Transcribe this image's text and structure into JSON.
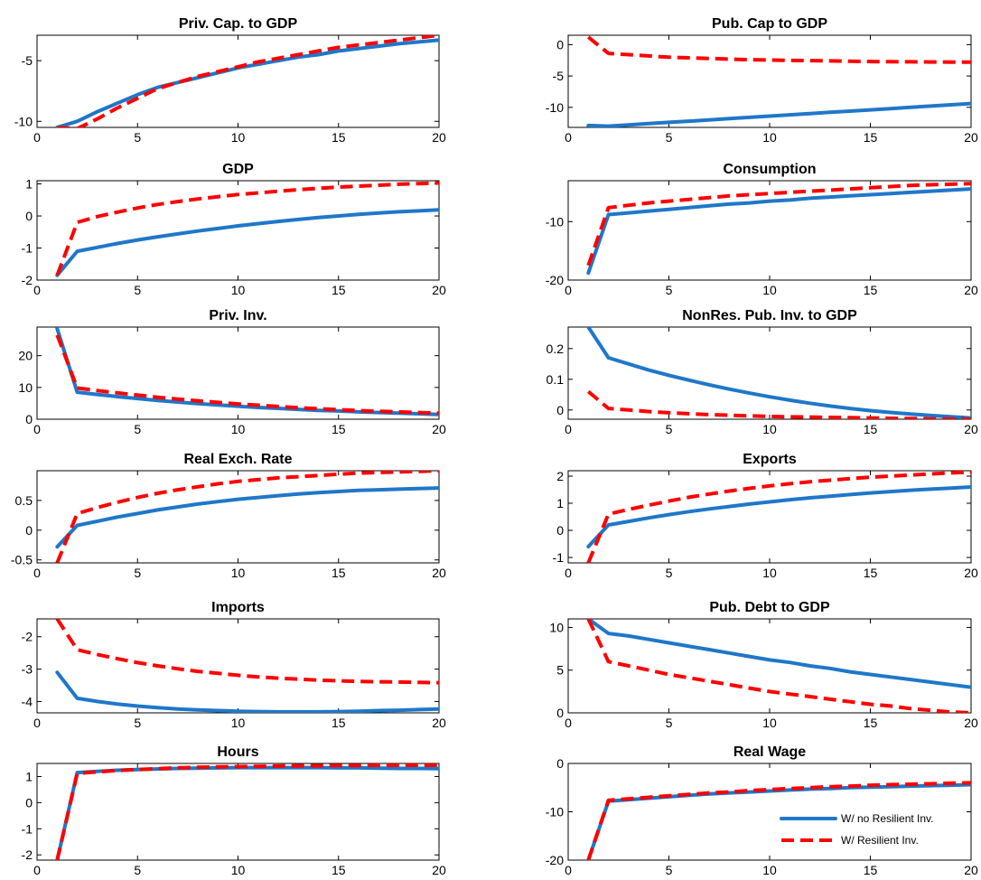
{
  "chart_data": [
    {
      "type": "line",
      "title": "Priv. Cap. to GDP",
      "x": [
        1,
        2,
        3,
        4,
        5,
        6,
        7,
        8,
        9,
        10,
        11,
        12,
        13,
        14,
        15,
        16,
        17,
        18,
        19,
        20
      ],
      "xlim": [
        0,
        20
      ],
      "xticks": [
        0,
        5,
        10,
        15,
        20
      ],
      "ylim": [
        -10.5,
        -2.9
      ],
      "yticks": [
        -10,
        -5
      ],
      "series": [
        {
          "name": "W/ no Resilient Inv.",
          "values": [
            -10.5,
            -10.0,
            -9.2,
            -8.5,
            -7.8,
            -7.2,
            -6.8,
            -6.4,
            -6.0,
            -5.6,
            -5.3,
            -5.0,
            -4.7,
            -4.5,
            -4.2,
            -4.0,
            -3.8,
            -3.6,
            -3.45,
            -3.3
          ]
        },
        {
          "name": "W/ Resilient Inv.",
          "values": [
            -10.5,
            -10.6,
            -9.8,
            -8.9,
            -8.1,
            -7.3,
            -6.8,
            -6.3,
            -5.9,
            -5.5,
            -5.1,
            -4.8,
            -4.5,
            -4.2,
            -3.9,
            -3.7,
            -3.5,
            -3.3,
            -3.1,
            -2.9
          ]
        }
      ]
    },
    {
      "type": "line",
      "title": "Pub. Cap to GDP",
      "x": [
        1,
        2,
        3,
        4,
        5,
        6,
        7,
        8,
        9,
        10,
        11,
        12,
        13,
        14,
        15,
        16,
        17,
        18,
        19,
        20
      ],
      "xlim": [
        0,
        20
      ],
      "xticks": [
        0,
        5,
        10,
        15,
        20
      ],
      "ylim": [
        -13.2,
        1.5
      ],
      "yticks": [
        -10,
        -5,
        0
      ],
      "series": [
        {
          "name": "W/ no Resilient Inv.",
          "values": [
            -12.9,
            -13.0,
            -12.8,
            -12.6,
            -12.4,
            -12.2,
            -12.0,
            -11.8,
            -11.6,
            -11.4,
            -11.2,
            -11.0,
            -10.8,
            -10.6,
            -10.4,
            -10.2,
            -10.0,
            -9.8,
            -9.6,
            -9.4
          ]
        },
        {
          "name": "W/ Resilient Inv.",
          "values": [
            1.2,
            -1.4,
            -1.6,
            -1.8,
            -2.0,
            -2.1,
            -2.2,
            -2.3,
            -2.4,
            -2.45,
            -2.5,
            -2.55,
            -2.6,
            -2.65,
            -2.7,
            -2.72,
            -2.74,
            -2.76,
            -2.78,
            -2.8
          ]
        }
      ]
    },
    {
      "type": "line",
      "title": "GDP",
      "x": [
        1,
        2,
        3,
        4,
        5,
        6,
        7,
        8,
        9,
        10,
        11,
        12,
        13,
        14,
        15,
        16,
        17,
        18,
        19,
        20
      ],
      "xlim": [
        0,
        20
      ],
      "xticks": [
        0,
        5,
        10,
        15,
        20
      ],
      "ylim": [
        -2,
        1.1
      ],
      "yticks": [
        -2,
        -1,
        0,
        1
      ],
      "series": [
        {
          "name": "W/ no Resilient Inv.",
          "values": [
            -1.85,
            -1.1,
            -0.98,
            -0.86,
            -0.75,
            -0.65,
            -0.56,
            -0.47,
            -0.39,
            -0.31,
            -0.24,
            -0.17,
            -0.11,
            -0.05,
            0.0,
            0.05,
            0.09,
            0.13,
            0.16,
            0.19
          ]
        },
        {
          "name": "W/ Resilient Inv.",
          "values": [
            -1.85,
            -0.2,
            -0.02,
            0.12,
            0.25,
            0.36,
            0.45,
            0.53,
            0.6,
            0.67,
            0.72,
            0.77,
            0.82,
            0.86,
            0.9,
            0.93,
            0.96,
            0.99,
            1.01,
            1.03
          ]
        }
      ]
    },
    {
      "type": "line",
      "title": "Consumption",
      "x": [
        1,
        2,
        3,
        4,
        5,
        6,
        7,
        8,
        9,
        10,
        11,
        12,
        13,
        14,
        15,
        16,
        17,
        18,
        19,
        20
      ],
      "xlim": [
        0,
        20
      ],
      "xticks": [
        0,
        5,
        10,
        15,
        20
      ],
      "ylim": [
        -20,
        -3
      ],
      "yticks": [
        -20,
        -10
      ],
      "series": [
        {
          "name": "W/ no Resilient Inv.",
          "values": [
            -18.8,
            -8.8,
            -8.5,
            -8.2,
            -7.9,
            -7.6,
            -7.3,
            -7.0,
            -6.8,
            -6.5,
            -6.3,
            -6.0,
            -5.8,
            -5.6,
            -5.4,
            -5.2,
            -5.0,
            -4.8,
            -4.6,
            -4.4
          ]
        },
        {
          "name": "W/ Resilient Inv.",
          "values": [
            -17.5,
            -7.6,
            -7.2,
            -6.8,
            -6.5,
            -6.2,
            -5.9,
            -5.6,
            -5.4,
            -5.2,
            -5.0,
            -4.8,
            -4.6,
            -4.4,
            -4.2,
            -4.0,
            -3.8,
            -3.7,
            -3.6,
            -3.5
          ]
        }
      ]
    },
    {
      "type": "line",
      "title": "Priv. Inv.",
      "x": [
        1,
        2,
        3,
        4,
        5,
        6,
        7,
        8,
        9,
        10,
        11,
        12,
        13,
        14,
        15,
        16,
        17,
        18,
        19,
        20
      ],
      "xlim": [
        0,
        20
      ],
      "xticks": [
        0,
        5,
        10,
        15,
        20
      ],
      "ylim": [
        0,
        29
      ],
      "yticks": [
        0,
        10,
        20
      ],
      "series": [
        {
          "name": "W/ no Resilient Inv.",
          "values": [
            28.5,
            8.5,
            7.8,
            7.1,
            6.5,
            5.9,
            5.4,
            4.9,
            4.5,
            4.1,
            3.7,
            3.4,
            3.1,
            2.8,
            2.6,
            2.3,
            2.1,
            1.9,
            1.7,
            1.5
          ]
        },
        {
          "name": "W/ Resilient Inv.",
          "values": [
            26.5,
            9.8,
            9.0,
            8.3,
            7.6,
            6.9,
            6.3,
            5.8,
            5.3,
            4.8,
            4.4,
            4.0,
            3.6,
            3.3,
            3.0,
            2.7,
            2.5,
            2.3,
            2.1,
            1.9
          ]
        }
      ]
    },
    {
      "type": "line",
      "title": "NonRes. Pub. Inv. to GDP",
      "x": [
        1,
        2,
        3,
        4,
        5,
        6,
        7,
        8,
        9,
        10,
        11,
        12,
        13,
        14,
        15,
        16,
        17,
        18,
        19,
        20
      ],
      "xlim": [
        0,
        20
      ],
      "xticks": [
        0,
        5,
        10,
        15,
        20
      ],
      "ylim": [
        -0.03,
        0.27
      ],
      "yticks": [
        0,
        0.1,
        0.2
      ],
      "series": [
        {
          "name": "W/ no Resilient Inv.",
          "values": [
            0.27,
            0.17,
            0.15,
            0.13,
            0.113,
            0.097,
            0.082,
            0.068,
            0.055,
            0.043,
            0.032,
            0.022,
            0.013,
            0.005,
            -0.002,
            -0.008,
            -0.013,
            -0.018,
            -0.022,
            -0.026
          ]
        },
        {
          "name": "W/ Resilient Inv.",
          "values": [
            0.06,
            0.005,
            0.0,
            -0.005,
            -0.009,
            -0.012,
            -0.015,
            -0.017,
            -0.019,
            -0.021,
            -0.022,
            -0.023,
            -0.024,
            -0.025,
            -0.026,
            -0.027,
            -0.028,
            -0.029,
            -0.029,
            -0.03
          ]
        }
      ]
    },
    {
      "type": "line",
      "title": "Real Exch. Rate",
      "x": [
        1,
        2,
        3,
        4,
        5,
        6,
        7,
        8,
        9,
        10,
        11,
        12,
        13,
        14,
        15,
        16,
        17,
        18,
        19,
        20
      ],
      "xlim": [
        0,
        20
      ],
      "xticks": [
        0,
        5,
        10,
        15,
        20
      ],
      "ylim": [
        -0.55,
        1.0
      ],
      "yticks": [
        -0.5,
        0,
        0.5
      ],
      "series": [
        {
          "name": "W/ no Resilient Inv.",
          "values": [
            -0.28,
            0.08,
            0.15,
            0.22,
            0.28,
            0.34,
            0.39,
            0.44,
            0.48,
            0.52,
            0.55,
            0.58,
            0.61,
            0.63,
            0.65,
            0.67,
            0.68,
            0.69,
            0.7,
            0.71
          ]
        },
        {
          "name": "W/ Resilient Inv.",
          "values": [
            -0.55,
            0.28,
            0.38,
            0.47,
            0.55,
            0.62,
            0.68,
            0.73,
            0.78,
            0.82,
            0.85,
            0.88,
            0.9,
            0.92,
            0.94,
            0.96,
            0.97,
            0.98,
            0.99,
            1.0
          ]
        }
      ]
    },
    {
      "type": "line",
      "title": "Exports",
      "x": [
        1,
        2,
        3,
        4,
        5,
        6,
        7,
        8,
        9,
        10,
        11,
        12,
        13,
        14,
        15,
        16,
        17,
        18,
        19,
        20
      ],
      "xlim": [
        0,
        20
      ],
      "xticks": [
        0,
        5,
        10,
        15,
        20
      ],
      "ylim": [
        -1.2,
        2.2
      ],
      "yticks": [
        -1,
        0,
        1,
        2
      ],
      "series": [
        {
          "name": "W/ no Resilient Inv.",
          "values": [
            -0.6,
            0.2,
            0.33,
            0.46,
            0.58,
            0.69,
            0.79,
            0.88,
            0.97,
            1.05,
            1.13,
            1.2,
            1.26,
            1.32,
            1.38,
            1.43,
            1.48,
            1.52,
            1.56,
            1.6
          ]
        },
        {
          "name": "W/ Resilient Inv.",
          "values": [
            -1.2,
            0.6,
            0.77,
            0.93,
            1.08,
            1.22,
            1.34,
            1.45,
            1.55,
            1.64,
            1.72,
            1.79,
            1.85,
            1.91,
            1.96,
            2.0,
            2.04,
            2.08,
            2.12,
            2.15
          ]
        }
      ]
    },
    {
      "type": "line",
      "title": "Imports",
      "x": [
        1,
        2,
        3,
        4,
        5,
        6,
        7,
        8,
        9,
        10,
        11,
        12,
        13,
        14,
        15,
        16,
        17,
        18,
        19,
        20
      ],
      "xlim": [
        0,
        20
      ],
      "xticks": [
        0,
        5,
        10,
        15,
        20
      ],
      "ylim": [
        -4.35,
        -1.45
      ],
      "yticks": [
        -4,
        -3,
        -2
      ],
      "series": [
        {
          "name": "W/ no Resilient Inv.",
          "values": [
            -3.1,
            -3.9,
            -4.0,
            -4.08,
            -4.14,
            -4.19,
            -4.23,
            -4.26,
            -4.28,
            -4.3,
            -4.31,
            -4.32,
            -4.32,
            -4.32,
            -4.31,
            -4.3,
            -4.28,
            -4.27,
            -4.25,
            -4.23
          ]
        },
        {
          "name": "W/ Resilient Inv.",
          "values": [
            -1.45,
            -2.4,
            -2.55,
            -2.68,
            -2.8,
            -2.9,
            -2.99,
            -3.07,
            -3.13,
            -3.19,
            -3.24,
            -3.28,
            -3.31,
            -3.34,
            -3.36,
            -3.38,
            -3.39,
            -3.4,
            -3.41,
            -3.42
          ]
        }
      ]
    },
    {
      "type": "line",
      "title": "Pub. Debt to GDP",
      "x": [
        1,
        2,
        3,
        4,
        5,
        6,
        7,
        8,
        9,
        10,
        11,
        12,
        13,
        14,
        15,
        16,
        17,
        18,
        19,
        20
      ],
      "xlim": [
        0,
        20
      ],
      "xticks": [
        0,
        5,
        10,
        15,
        20
      ],
      "ylim": [
        0,
        11
      ],
      "yticks": [
        0,
        5,
        10
      ],
      "series": [
        {
          "name": "W/ no Resilient Inv.",
          "values": [
            11.0,
            9.3,
            9.0,
            8.6,
            8.2,
            7.8,
            7.4,
            7.0,
            6.6,
            6.2,
            5.9,
            5.5,
            5.2,
            4.8,
            4.5,
            4.2,
            3.9,
            3.6,
            3.3,
            3.0
          ]
        },
        {
          "name": "W/ Resilient Inv.",
          "values": [
            11.0,
            6.0,
            5.5,
            5.0,
            4.5,
            4.1,
            3.7,
            3.3,
            2.9,
            2.5,
            2.2,
            1.9,
            1.6,
            1.3,
            1.0,
            0.8,
            0.5,
            0.3,
            0.1,
            0.0
          ]
        }
      ]
    },
    {
      "type": "line",
      "title": "Hours",
      "x": [
        1,
        2,
        3,
        4,
        5,
        6,
        7,
        8,
        9,
        10,
        11,
        12,
        13,
        14,
        15,
        16,
        17,
        18,
        19,
        20
      ],
      "xlim": [
        0,
        20
      ],
      "xticks": [
        0,
        5,
        10,
        15,
        20
      ],
      "ylim": [
        -2.2,
        1.5
      ],
      "yticks": [
        -2,
        -1,
        0,
        1
      ],
      "series": [
        {
          "name": "W/ no Resilient Inv.",
          "values": [
            -2.2,
            1.15,
            1.2,
            1.24,
            1.27,
            1.29,
            1.31,
            1.32,
            1.33,
            1.34,
            1.34,
            1.34,
            1.34,
            1.34,
            1.33,
            1.33,
            1.32,
            1.31,
            1.31,
            1.3
          ]
        },
        {
          "name": "W/ Resilient Inv.",
          "values": [
            -2.2,
            1.12,
            1.18,
            1.23,
            1.27,
            1.3,
            1.33,
            1.35,
            1.37,
            1.38,
            1.39,
            1.4,
            1.41,
            1.41,
            1.42,
            1.42,
            1.43,
            1.43,
            1.43,
            1.43
          ]
        }
      ]
    },
    {
      "type": "line",
      "title": "Real Wage",
      "x": [
        1,
        2,
        3,
        4,
        5,
        6,
        7,
        8,
        9,
        10,
        11,
        12,
        13,
        14,
        15,
        16,
        17,
        18,
        19,
        20
      ],
      "xlim": [
        0,
        20
      ],
      "xticks": [
        0,
        5,
        10,
        15,
        20
      ],
      "ylim": [
        -20,
        0
      ],
      "yticks": [
        -20,
        -10,
        0
      ],
      "series": [
        {
          "name": "W/ no Resilient Inv.",
          "values": [
            -20,
            -7.8,
            -7.5,
            -7.2,
            -6.9,
            -6.6,
            -6.3,
            -6.1,
            -5.9,
            -5.7,
            -5.5,
            -5.3,
            -5.2,
            -5.0,
            -4.9,
            -4.8,
            -4.7,
            -4.6,
            -4.5,
            -4.4
          ]
        },
        {
          "name": "W/ Resilient Inv.",
          "values": [
            -20,
            -7.6,
            -7.3,
            -7.0,
            -6.7,
            -6.4,
            -6.1,
            -5.9,
            -5.6,
            -5.4,
            -5.2,
            -5.0,
            -4.8,
            -4.7,
            -4.5,
            -4.4,
            -4.3,
            -4.2,
            -4.1,
            -4.0
          ]
        }
      ]
    }
  ],
  "legend": {
    "entries": [
      "W/ no Resilient Inv.",
      "W/ Resilient Inv."
    ],
    "placement": "bottom-right of last panel"
  },
  "colors": {
    "series_a": "#1f77c9",
    "series_b": "#ff0000"
  }
}
